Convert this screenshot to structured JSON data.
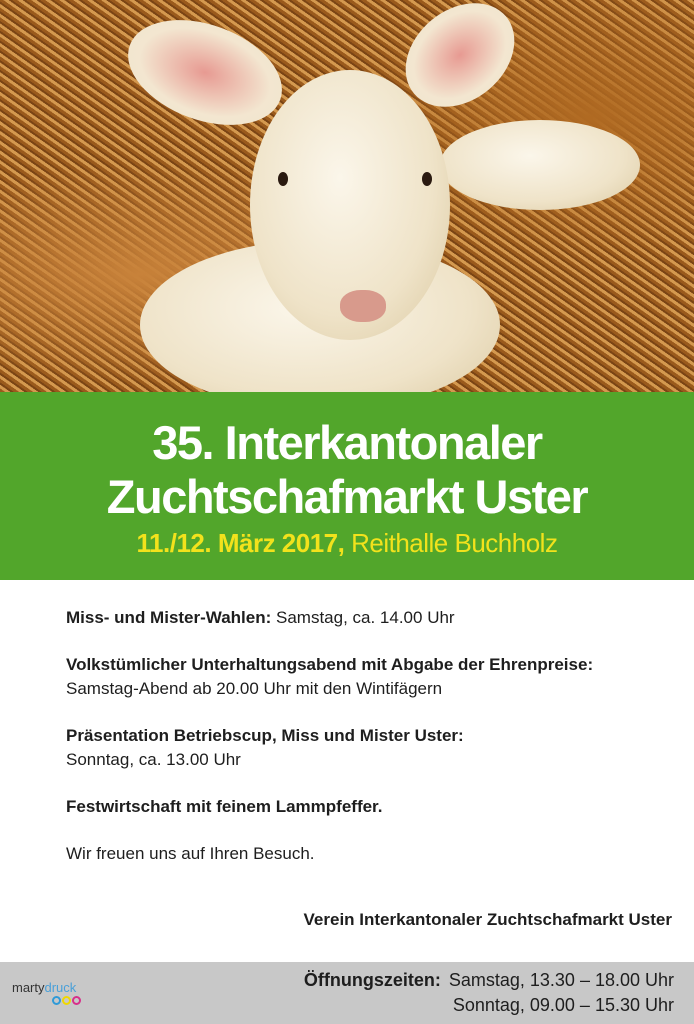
{
  "photo": {
    "description_icon": "lamb-in-straw-photo"
  },
  "banner": {
    "title_line1": "35. Interkantonaler",
    "title_line2": "Zuchtschafmarkt Uster",
    "date": "11./12. März 2017,",
    "venue": "Reithalle Buchholz",
    "bg_color": "#52a62b",
    "date_color": "#f2e21c"
  },
  "program": [
    {
      "bold": "Miss- und Mister-Wahlen:",
      "text": " Samstag, ca. 14.00 Uhr"
    },
    {
      "bold": "Volkstümlicher Unterhaltungsabend mit Abgabe der Ehrenpreise:",
      "text": "Samstag-Abend ab 20.00 Uhr mit den Wintifägern"
    },
    {
      "bold": "Präsentation Betriebscup, Miss und Mister Uster:",
      "text": "Sonntag, ca. 13.00 Uhr"
    },
    {
      "bold": "Festwirtschaft mit feinem Lammpfeffer.",
      "text": ""
    }
  ],
  "closing": "Wir freuen uns auf Ihren Besuch.",
  "signature": "Verein Interkantonaler Zuchtschafmarkt Uster",
  "footer": {
    "logo_part1": "marty",
    "logo_part2": "druck",
    "hours_label": "Öffnungszeiten:",
    "hours": [
      "Samstag, 13.30 – 18.00 Uhr",
      "Sonntag, 09.00 – 15.30 Uhr"
    ]
  }
}
